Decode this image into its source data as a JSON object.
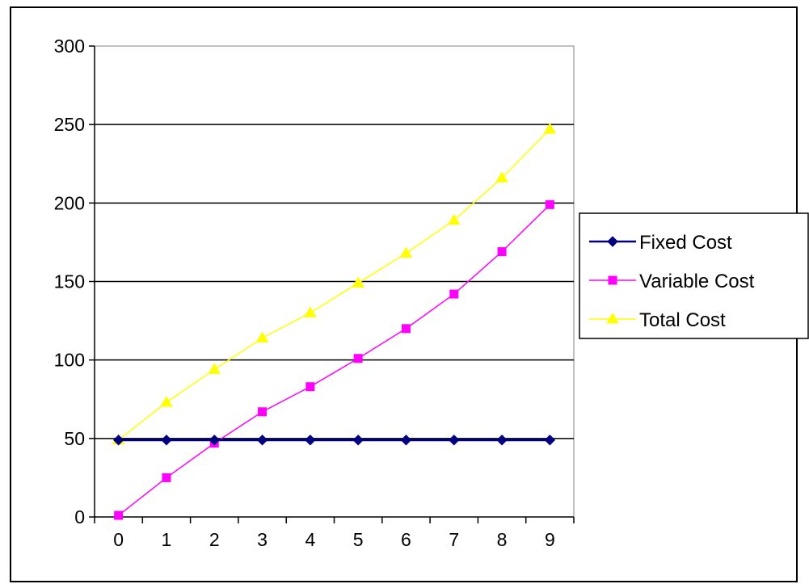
{
  "chart_data": {
    "type": "line",
    "title": "",
    "xlabel": "",
    "ylabel": "",
    "x": [
      0,
      1,
      2,
      3,
      4,
      5,
      6,
      7,
      8,
      9
    ],
    "ylim": [
      0,
      300
    ],
    "yticks": [
      0,
      50,
      100,
      150,
      200,
      250,
      300
    ],
    "grid": "horizontal",
    "legend_position": "right",
    "series": [
      {
        "name": "Fixed Cost",
        "color": "#000080",
        "marker": "diamond",
        "values": [
          49,
          49,
          49,
          49,
          49,
          49,
          49,
          49,
          49,
          49
        ]
      },
      {
        "name": "Variable Cost",
        "color": "#FF00FF",
        "marker": "square",
        "values": [
          1,
          25,
          47,
          67,
          83,
          101,
          120,
          142,
          169,
          199
        ]
      },
      {
        "name": "Total Cost",
        "color": "#FFFF00",
        "marker": "triangle",
        "values": [
          49,
          73,
          94,
          114,
          130,
          149,
          168,
          189,
          216,
          247
        ]
      }
    ]
  }
}
